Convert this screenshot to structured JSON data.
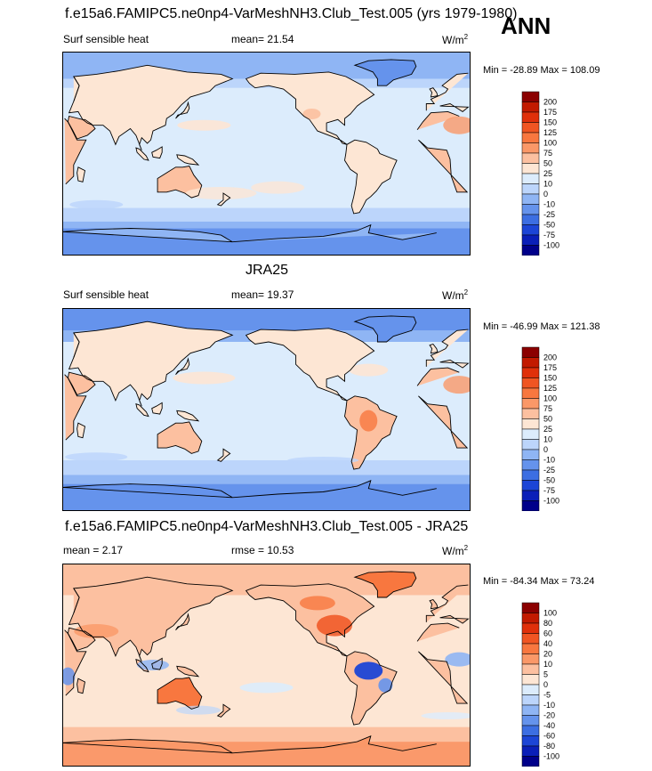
{
  "season": "ANN",
  "panels": [
    {
      "title": "f.e15a6.FAMIPC5.ne0np4-VarMeshNH3.Club_Test.005 (yrs 1979-1980)",
      "left_label": "Surf sensible heat",
      "center_label": "mean=  21.54",
      "units": "W/m",
      "units_sup": "2",
      "minmax": "Min = -28.89 Max = 108.09",
      "colorbar_levels": [
        "200",
        "175",
        "150",
        "125",
        "100",
        "75",
        "50",
        "25",
        "10",
        "0",
        "-10",
        "-25",
        "-50",
        "-75",
        "-100"
      ],
      "colorbar_colors": [
        "#8b0000",
        "#c21a00",
        "#e0300a",
        "#f05522",
        "#f8773f",
        "#fa9868",
        "#fcc0a0",
        "#fde6d4",
        "#dcecfc",
        "#bcd5fb",
        "#8fb5f4",
        "#6593ec",
        "#3c6ee2",
        "#1c45d6",
        "#0a1fb8",
        "#00008a"
      ]
    },
    {
      "title": "JRA25",
      "left_label": "Surf sensible heat",
      "center_label": "mean=  19.37",
      "units": "W/m",
      "units_sup": "2",
      "minmax": "Min = -46.99 Max = 121.38",
      "colorbar_levels": [
        "200",
        "175",
        "150",
        "125",
        "100",
        "75",
        "50",
        "25",
        "10",
        "0",
        "-10",
        "-25",
        "-50",
        "-75",
        "-100"
      ],
      "colorbar_colors": [
        "#8b0000",
        "#c21a00",
        "#e0300a",
        "#f05522",
        "#f8773f",
        "#fa9868",
        "#fcc0a0",
        "#fde6d4",
        "#dcecfc",
        "#bcd5fb",
        "#8fb5f4",
        "#6593ec",
        "#3c6ee2",
        "#1c45d6",
        "#0a1fb8",
        "#00008a"
      ]
    },
    {
      "title": "f.e15a6.FAMIPC5.ne0np4-VarMeshNH3.Club_Test.005 - JRA25",
      "left_label": "mean =   2.17",
      "center_label": "rmse =  10.53",
      "units": "W/m",
      "units_sup": "2",
      "minmax": "Min = -84.34 Max = 73.24",
      "colorbar_levels": [
        "100",
        "80",
        "60",
        "40",
        "20",
        "10",
        "5",
        "0",
        "-5",
        "-10",
        "-20",
        "-40",
        "-60",
        "-80",
        "-100"
      ],
      "colorbar_colors": [
        "#8b0000",
        "#c21a00",
        "#e0300a",
        "#f05522",
        "#f8773f",
        "#fa9868",
        "#fcc0a0",
        "#fde6d4",
        "#dcecfc",
        "#bcd5fb",
        "#8fb5f4",
        "#6593ec",
        "#3c6ee2",
        "#1c45d6",
        "#0a1fb8",
        "#00008a"
      ]
    }
  ],
  "chart_data": [
    {
      "type": "heatmap",
      "title": "f.e15a6.FAMIPC5.ne0np4-VarMeshNH3.Club_Test.005 (yrs 1979-1980)",
      "variable": "Surf sensible heat",
      "units": "W/m2",
      "mean": 21.54,
      "min": -28.89,
      "max": 108.09,
      "contour_levels": [
        -100,
        -75,
        -50,
        -25,
        -10,
        0,
        10,
        25,
        50,
        75,
        100,
        125,
        150,
        175,
        200
      ]
    },
    {
      "type": "heatmap",
      "title": "JRA25",
      "variable": "Surf sensible heat",
      "units": "W/m2",
      "mean": 19.37,
      "min": -46.99,
      "max": 121.38,
      "contour_levels": [
        -100,
        -75,
        -50,
        -25,
        -10,
        0,
        10,
        25,
        50,
        75,
        100,
        125,
        150,
        175,
        200
      ]
    },
    {
      "type": "heatmap",
      "title": "f.e15a6.FAMIPC5.ne0np4-VarMeshNH3.Club_Test.005 - JRA25",
      "units": "W/m2",
      "mean": 2.17,
      "rmse": 10.53,
      "min": -84.34,
      "max": 73.24,
      "contour_levels": [
        -100,
        -80,
        -60,
        -40,
        -20,
        -10,
        -5,
        0,
        5,
        10,
        20,
        40,
        60,
        80,
        100
      ]
    }
  ]
}
